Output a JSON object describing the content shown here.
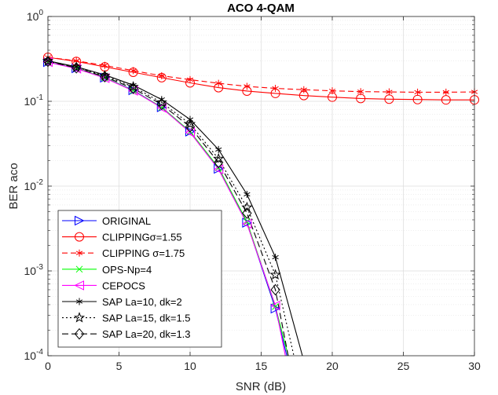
{
  "chart_data": {
    "type": "line",
    "title": "ACO 4-QAM",
    "xlabel": "SNR (dB)",
    "ylabel": "BER aco",
    "xlim": [
      0,
      30
    ],
    "ylim": [
      0.0001,
      1
    ],
    "yscale": "log",
    "grid": true,
    "legend_position": "bottom-left",
    "x_ticks": [
      {
        "value": 0,
        "label": "0"
      },
      {
        "value": 5,
        "label": "5"
      },
      {
        "value": 10,
        "label": "10"
      },
      {
        "value": 15,
        "label": "15"
      },
      {
        "value": 20,
        "label": "20"
      },
      {
        "value": 25,
        "label": "25"
      },
      {
        "value": 30,
        "label": "30"
      }
    ],
    "y_ticks": [
      {
        "value": 1,
        "base": "10",
        "exp": "0"
      },
      {
        "value": 0.1,
        "base": "10",
        "exp": "-1"
      },
      {
        "value": 0.01,
        "base": "10",
        "exp": "-2"
      },
      {
        "value": 0.001,
        "base": "10",
        "exp": "-3"
      },
      {
        "value": 0.0001,
        "base": "10",
        "exp": "-4"
      }
    ],
    "series": [
      {
        "name": "ORIGINAL",
        "color": "#0000ff",
        "dash": "",
        "marker": "triangle-right",
        "x": [
          0,
          2,
          4,
          6,
          8,
          10,
          12,
          14,
          16,
          16.8
        ],
        "y": [
          0.29,
          0.245,
          0.19,
          0.135,
          0.085,
          0.044,
          0.016,
          0.0037,
          0.00036,
          0.0001
        ]
      },
      {
        "name": "CLIPPINGσ=1.55",
        "color": "#ff0000",
        "dash": "",
        "marker": "circle",
        "x": [
          0,
          2,
          4,
          6,
          8,
          10,
          12,
          14,
          16,
          18,
          20,
          22,
          24,
          26,
          28,
          30
        ],
        "y": [
          0.33,
          0.295,
          0.255,
          0.22,
          0.19,
          0.165,
          0.145,
          0.132,
          0.124,
          0.117,
          0.112,
          0.108,
          0.106,
          0.105,
          0.104,
          0.104
        ]
      },
      {
        "name": "CLIPPING σ=1.75",
        "color": "#ff0000",
        "dash": "7,4",
        "marker": "asterisk",
        "x": [
          0,
          2,
          4,
          6,
          8,
          10,
          12,
          14,
          16,
          18,
          20,
          22,
          24,
          26,
          28,
          30
        ],
        "y": [
          0.33,
          0.3,
          0.265,
          0.23,
          0.2,
          0.18,
          0.163,
          0.15,
          0.142,
          0.137,
          0.133,
          0.13,
          0.129,
          0.128,
          0.128,
          0.129
        ]
      },
      {
        "name": "OPS-Np=4",
        "color": "#00ff00",
        "dash": "",
        "marker": "x",
        "x": [
          0,
          2,
          4,
          6,
          8,
          10,
          12,
          14,
          16,
          16.9
        ],
        "y": [
          0.29,
          0.245,
          0.19,
          0.134,
          0.085,
          0.044,
          0.0165,
          0.0038,
          0.00038,
          0.0001
        ]
      },
      {
        "name": "CEPOCS",
        "color": "#ff00ff",
        "dash": "",
        "marker": "triangle-left",
        "x": [
          0,
          2,
          4,
          6,
          8,
          10,
          12,
          14,
          16,
          16.7
        ],
        "y": [
          0.29,
          0.243,
          0.188,
          0.133,
          0.084,
          0.043,
          0.0158,
          0.0036,
          0.00039,
          0.0001
        ]
      },
      {
        "name": "SAP La=10, dk=2",
        "color": "#000000",
        "dash": "",
        "marker": "asterisk",
        "x": [
          0,
          2,
          4,
          6,
          8,
          10,
          12,
          14,
          16,
          17.9
        ],
        "y": [
          0.3,
          0.255,
          0.205,
          0.155,
          0.105,
          0.061,
          0.027,
          0.008,
          0.00145,
          0.0001
        ]
      },
      {
        "name": "SAP La=15, dk=1.5",
        "color": "#000000",
        "dash": "2,3",
        "marker": "pentagram",
        "x": [
          0,
          2,
          4,
          6,
          8,
          10,
          12,
          14,
          16,
          17.3
        ],
        "y": [
          0.3,
          0.252,
          0.2,
          0.148,
          0.097,
          0.054,
          0.021,
          0.0056,
          0.0009,
          0.0001
        ]
      },
      {
        "name": "SAP La=20, dk=1.3",
        "color": "#000000",
        "dash": "8,4",
        "marker": "diamond",
        "x": [
          0,
          2,
          4,
          6,
          8,
          10,
          12,
          14,
          16,
          16.9
        ],
        "y": [
          0.295,
          0.248,
          0.195,
          0.142,
          0.092,
          0.05,
          0.019,
          0.0048,
          0.0006,
          0.0001
        ]
      }
    ]
  }
}
